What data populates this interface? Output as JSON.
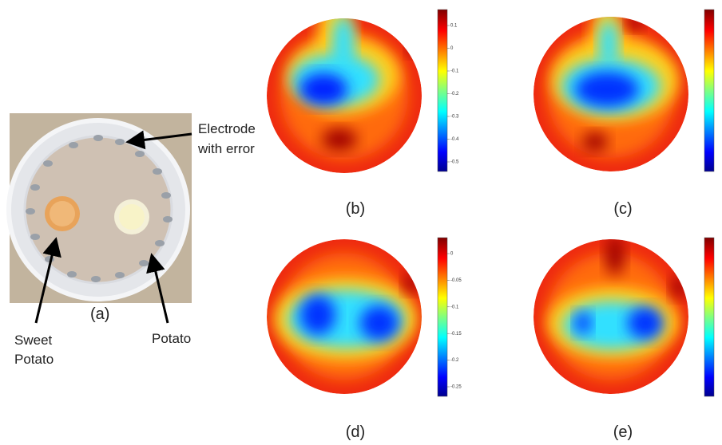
{
  "figure": {
    "photo": {
      "label": "(a)",
      "electrode_note": [
        "Electrode",
        "with error"
      ],
      "sweet_potato": [
        "Sweet",
        "Potato"
      ],
      "potato": "Potato"
    },
    "panels": [
      {
        "label": "(b)",
        "colorbar_ticks": [
          "0.1",
          "0",
          "-0.1",
          "-0.2",
          "-0.3",
          "-0.4",
          "-0.5"
        ]
      },
      {
        "label": "(c)",
        "colorbar_ticks": []
      },
      {
        "label": "(d)",
        "colorbar_ticks": [
          "0",
          "-0.05",
          "-0.1",
          "-0.15",
          "-0.2",
          "-0.25"
        ]
      },
      {
        "label": "(e)",
        "colorbar_ticks": []
      }
    ]
  }
}
